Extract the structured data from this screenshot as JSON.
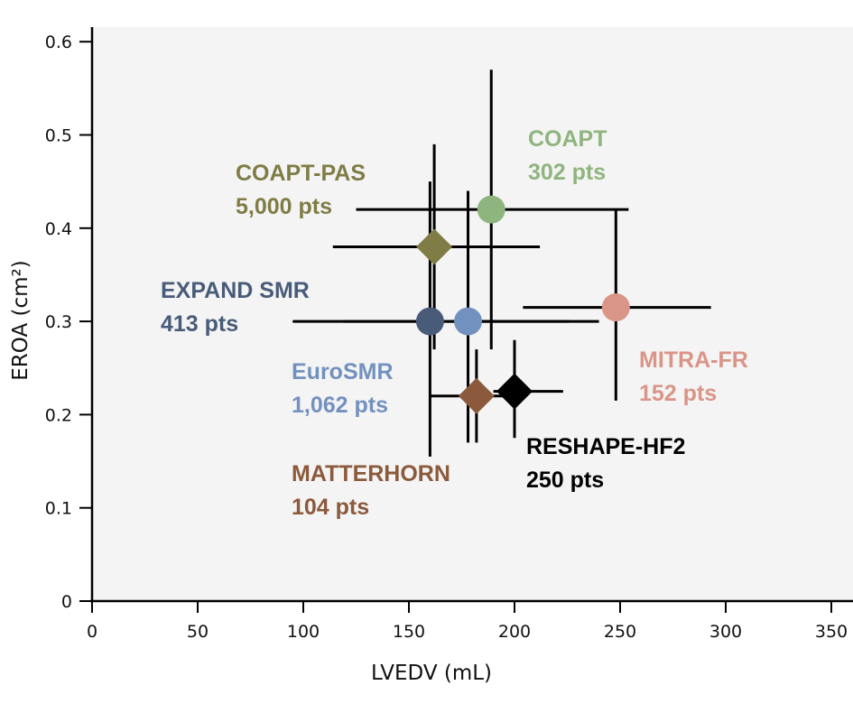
{
  "chart_data": {
    "type": "scatter",
    "title": "",
    "xlabel": "LVEDV (mL)",
    "ylabel": "EROA (cm²)",
    "xlim": [
      0,
      360
    ],
    "ylim": [
      0,
      0.62
    ],
    "x_ticks": [
      0,
      50,
      100,
      150,
      200,
      250,
      300,
      350
    ],
    "x_tick_labels": [
      "0",
      "50",
      "100",
      "150",
      "200",
      "250",
      "300",
      "350"
    ],
    "y_ticks": [
      0,
      0.1,
      0.2,
      0.3,
      0.4,
      0.5,
      0.6
    ],
    "y_tick_labels": [
      "0",
      "0.1",
      "0.2",
      "0.3",
      "0.4",
      "0.5",
      "0.6"
    ],
    "grid": false,
    "background": "#f4f4f4",
    "series": [
      {
        "name": "COAPT",
        "patients": "302 pts",
        "marker": "circle",
        "color": "#8fb57e",
        "x": 189,
        "x_range": [
          125,
          254
        ],
        "y": 0.42,
        "y_range": [
          0.27,
          0.57
        ]
      },
      {
        "name": "COAPT-PAS",
        "patients": "5,000 pts",
        "marker": "diamond",
        "color": "#7f7c45",
        "x": 162,
        "x_range": [
          114,
          212
        ],
        "y": 0.38,
        "y_range": [
          0.27,
          0.49
        ]
      },
      {
        "name": "EXPAND SMR",
        "patients": "413 pts",
        "marker": "circle",
        "color": "#485c7a",
        "x": 160,
        "x_range": [
          95,
          226
        ],
        "y": 0.3,
        "y_range": [
          0.155,
          0.45
        ]
      },
      {
        "name": "EuroSMR",
        "patients": "1,062 pts",
        "marker": "circle",
        "color": "#7391bf",
        "x": 178,
        "x_range": [
          119,
          240
        ],
        "y": 0.3,
        "y_range": [
          0.17,
          0.44
        ]
      },
      {
        "name": "MITRA-FR",
        "patients": "152 pts",
        "marker": "circle",
        "color": "#d99587",
        "x": 248,
        "x_range": [
          204,
          293
        ],
        "y": 0.315,
        "y_range": [
          0.215,
          0.42
        ]
      },
      {
        "name": "MATTERHORN",
        "patients": "104 pts",
        "marker": "diamond",
        "color": "#8b5a3c",
        "x": 182,
        "x_range": [
          160,
          200
        ],
        "y": 0.22,
        "y_range": [
          0.17,
          0.27
        ]
      },
      {
        "name": "RESHAPE-HF2",
        "patients": "250 pts",
        "marker": "diamond",
        "color": "#000000",
        "x": 200,
        "x_range": [
          190,
          223
        ],
        "y": 0.225,
        "y_range": [
          0.175,
          0.28
        ]
      }
    ]
  }
}
